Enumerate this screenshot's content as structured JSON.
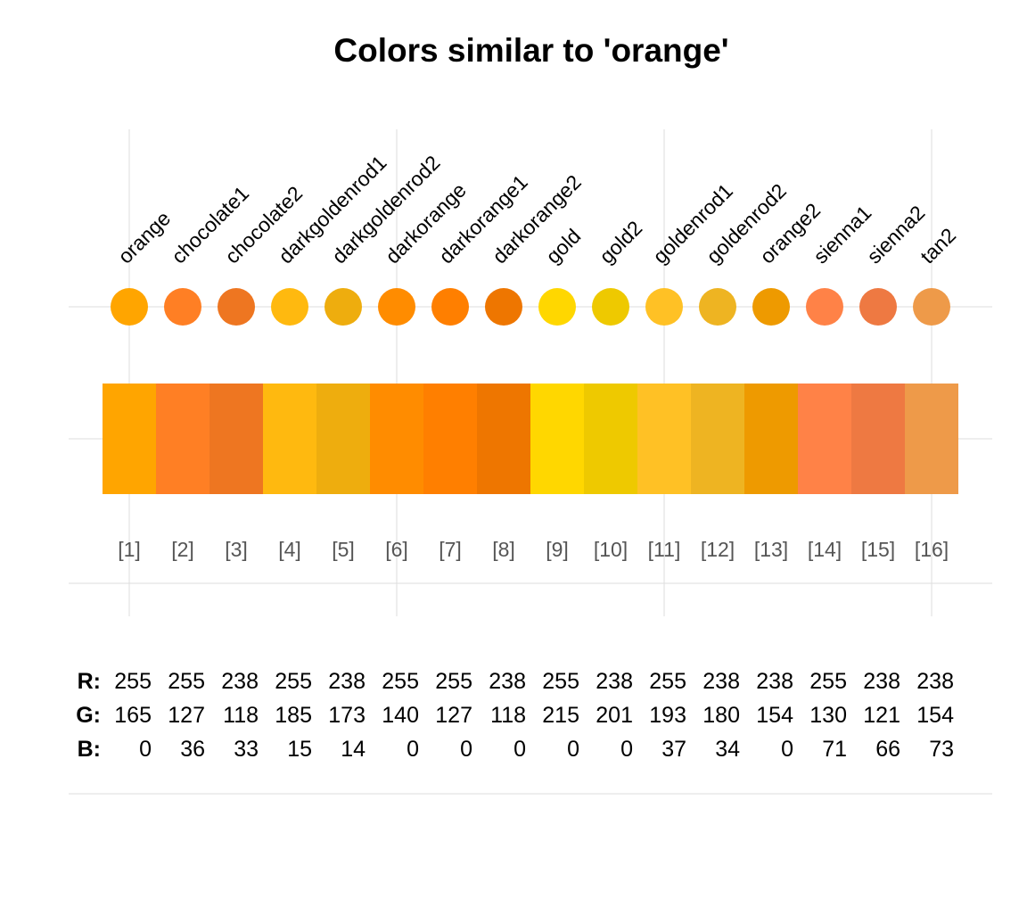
{
  "title": "Colors similar to 'orange'",
  "channel_labels": {
    "r": "R:",
    "g": "G:",
    "b": "B:"
  },
  "chart_data": {
    "type": "palette",
    "title": "Colors similar to 'orange'",
    "grid": true,
    "colors": [
      {
        "index": "[1]",
        "name": "orange",
        "hex": "#FFA500",
        "r": 255,
        "g": 165,
        "b": 0
      },
      {
        "index": "[2]",
        "name": "chocolate1",
        "hex": "#FF7F24",
        "r": 255,
        "g": 127,
        "b": 36
      },
      {
        "index": "[3]",
        "name": "chocolate2",
        "hex": "#EE7621",
        "r": 238,
        "g": 118,
        "b": 33
      },
      {
        "index": "[4]",
        "name": "darkgoldenrod1",
        "hex": "#FFB90F",
        "r": 255,
        "g": 185,
        "b": 15
      },
      {
        "index": "[5]",
        "name": "darkgoldenrod2",
        "hex": "#EEAD0E",
        "r": 238,
        "g": 173,
        "b": 14
      },
      {
        "index": "[6]",
        "name": "darkorange",
        "hex": "#FF8C00",
        "r": 255,
        "g": 140,
        "b": 0
      },
      {
        "index": "[7]",
        "name": "darkorange1",
        "hex": "#FF7F00",
        "r": 255,
        "g": 127,
        "b": 0
      },
      {
        "index": "[8]",
        "name": "darkorange2",
        "hex": "#EE7600",
        "r": 238,
        "g": 118,
        "b": 0
      },
      {
        "index": "[9]",
        "name": "gold",
        "hex": "#FFD700",
        "r": 255,
        "g": 215,
        "b": 0
      },
      {
        "index": "[10]",
        "name": "gold2",
        "hex": "#EEC900",
        "r": 238,
        "g": 201,
        "b": 0
      },
      {
        "index": "[11]",
        "name": "goldenrod1",
        "hex": "#FFC125",
        "r": 255,
        "g": 193,
        "b": 37
      },
      {
        "index": "[12]",
        "name": "goldenrod2",
        "hex": "#EEB422",
        "r": 238,
        "g": 180,
        "b": 34
      },
      {
        "index": "[13]",
        "name": "orange2",
        "hex": "#EE9A00",
        "r": 238,
        "g": 154,
        "b": 0
      },
      {
        "index": "[14]",
        "name": "sienna1",
        "hex": "#FF8247",
        "r": 255,
        "g": 130,
        "b": 71
      },
      {
        "index": "[15]",
        "name": "sienna2",
        "hex": "#EE7942",
        "r": 238,
        "g": 121,
        "b": 66
      },
      {
        "index": "[16]",
        "name": "tan2",
        "hex": "#EE9A49",
        "r": 238,
        "g": 154,
        "b": 73
      }
    ]
  }
}
